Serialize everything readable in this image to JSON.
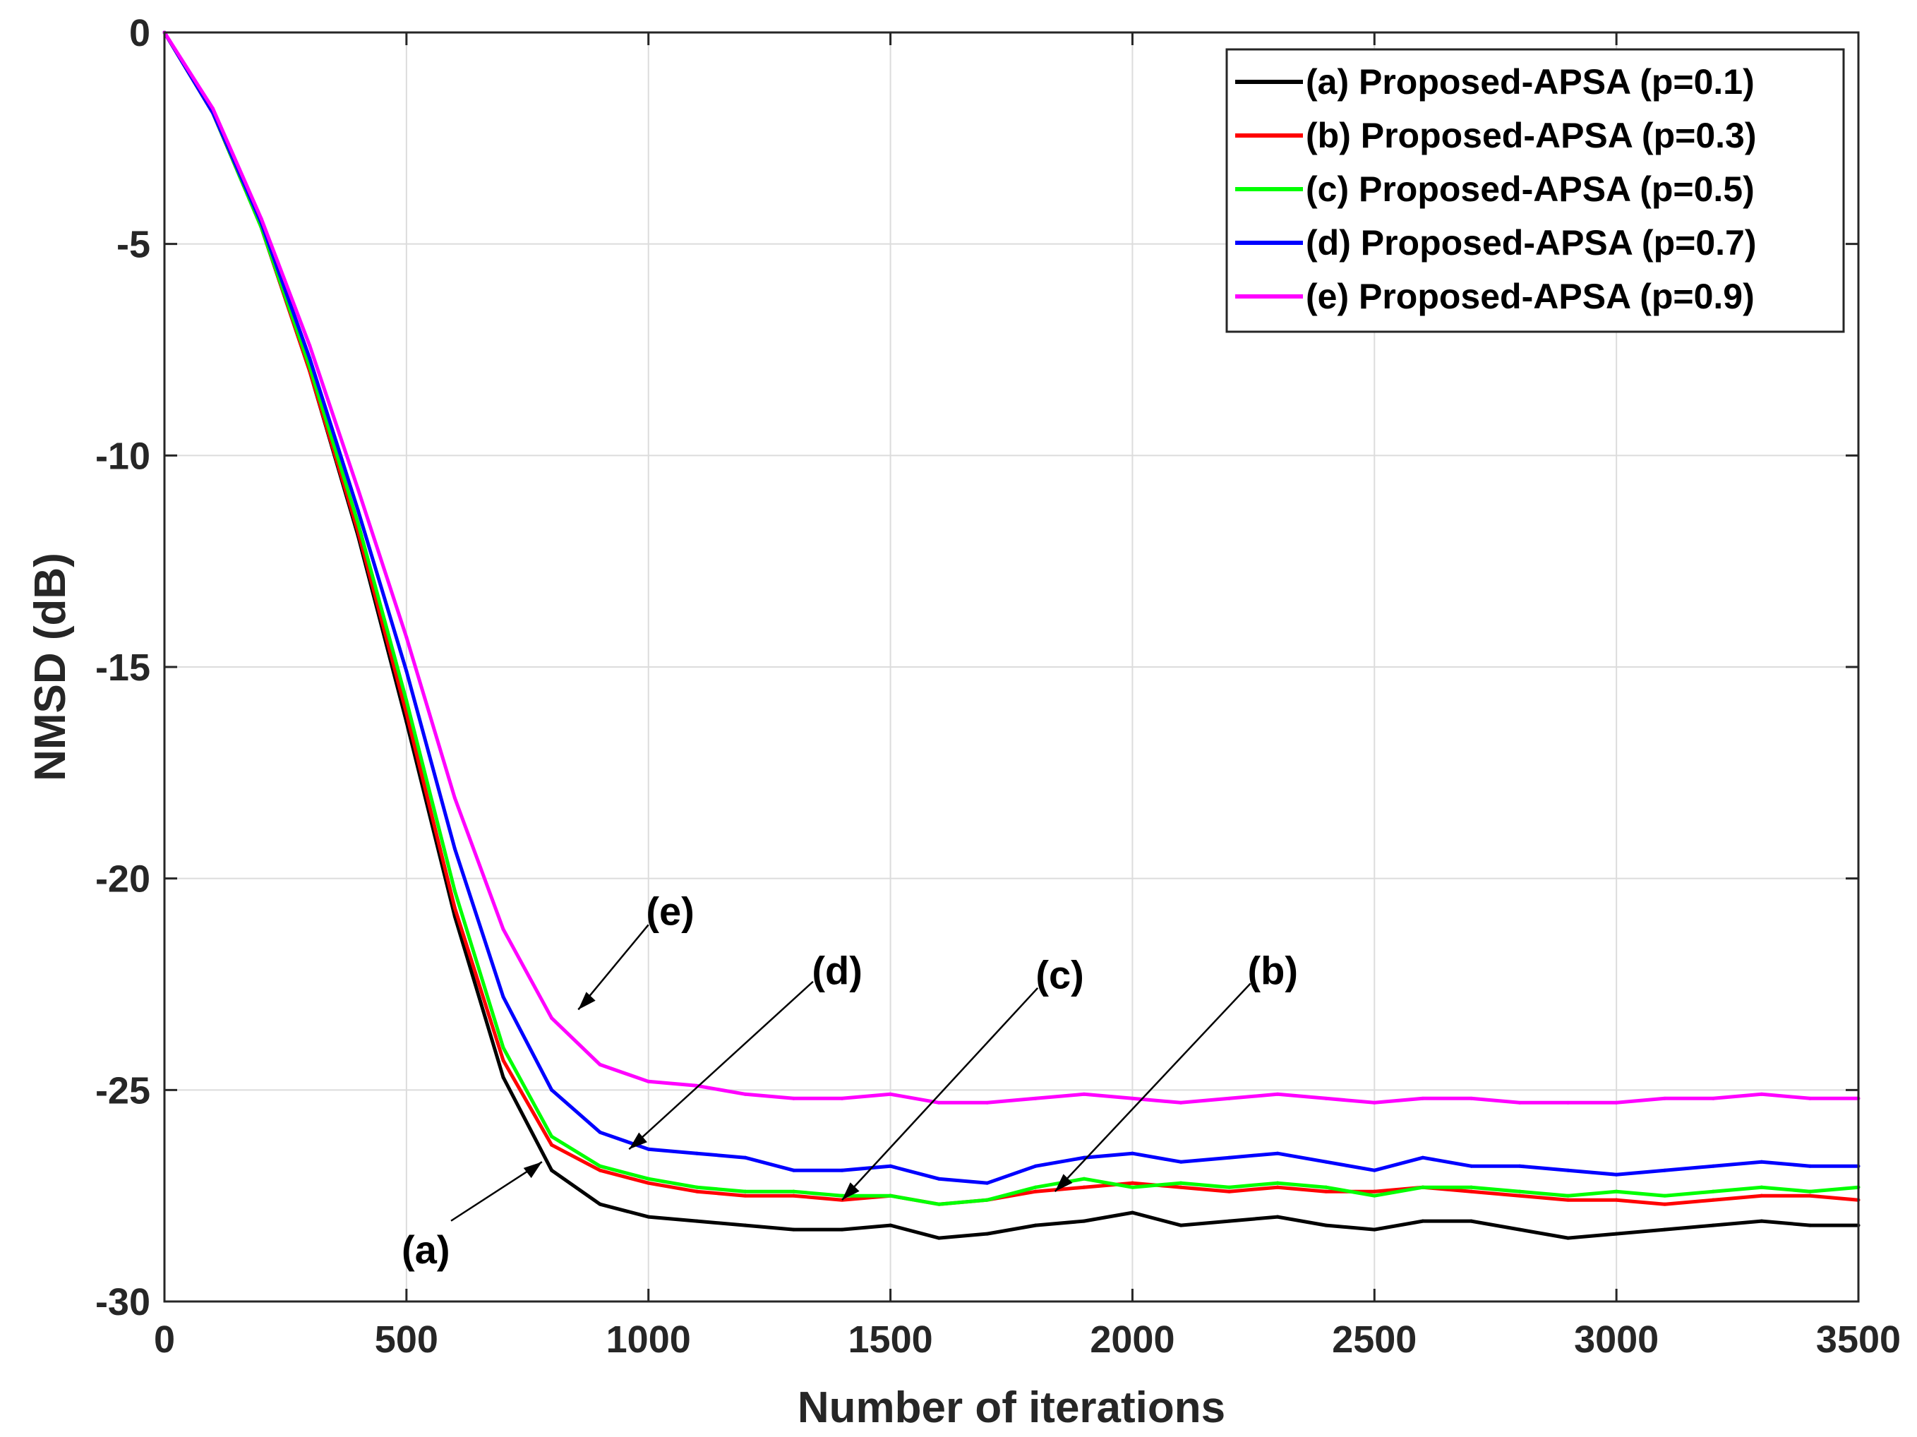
{
  "chart_data": {
    "type": "line",
    "title": "",
    "xlabel": "Number of iterations",
    "ylabel": "NMSD (dB)",
    "xlim": [
      0,
      3500
    ],
    "ylim": [
      -30,
      0
    ],
    "grid": true,
    "legend_position": "top-right",
    "x_ticks": [
      0,
      500,
      1000,
      1500,
      2000,
      2500,
      3000,
      3500
    ],
    "x_tick_labels": [
      "0",
      "500",
      "1000",
      "1500",
      "2000",
      "2500",
      "3000",
      "3500"
    ],
    "y_ticks": [
      0,
      -5,
      -10,
      -15,
      -20,
      -25,
      -30
    ],
    "y_tick_labels": [
      "0",
      "-5",
      "-10",
      "-15",
      "-20",
      "-25",
      "-30"
    ],
    "x": [
      0,
      100,
      200,
      300,
      400,
      500,
      600,
      700,
      800,
      900,
      1000,
      1100,
      1200,
      1300,
      1400,
      1500,
      1600,
      1700,
      1800,
      1900,
      2000,
      2100,
      2200,
      2300,
      2400,
      2500,
      2600,
      2700,
      2800,
      2900,
      3000,
      3100,
      3200,
      3300,
      3400,
      3500
    ],
    "series": [
      {
        "name": "(a) Proposed-APSA (p=0.1)",
        "color": "#000000",
        "values": [
          0,
          -1.9,
          -4.6,
          -8.0,
          -11.9,
          -16.3,
          -20.9,
          -24.7,
          -26.9,
          -27.7,
          -28.0,
          -28.1,
          -28.2,
          -28.3,
          -28.3,
          -28.2,
          -28.5,
          -28.4,
          -28.2,
          -28.1,
          -27.9,
          -28.2,
          -28.1,
          -28.0,
          -28.2,
          -28.3,
          -28.1,
          -28.1,
          -28.3,
          -28.5,
          -28.4,
          -28.3,
          -28.2,
          -28.1,
          -28.2,
          -28.2
        ]
      },
      {
        "name": "(b) Proposed-APSA (p=0.3)",
        "color": "#ff0000",
        "values": [
          0,
          -1.9,
          -4.6,
          -8.0,
          -11.8,
          -16.1,
          -20.7,
          -24.3,
          -26.3,
          -26.9,
          -27.2,
          -27.4,
          -27.5,
          -27.5,
          -27.6,
          -27.5,
          -27.7,
          -27.6,
          -27.4,
          -27.3,
          -27.2,
          -27.3,
          -27.4,
          -27.3,
          -27.4,
          -27.4,
          -27.3,
          -27.4,
          -27.5,
          -27.6,
          -27.6,
          -27.7,
          -27.6,
          -27.5,
          -27.5,
          -27.6
        ]
      },
      {
        "name": "(c) Proposed-APSA (p=0.5)",
        "color": "#00ff00",
        "values": [
          0,
          -1.9,
          -4.6,
          -7.9,
          -11.6,
          -15.8,
          -20.3,
          -24.0,
          -26.1,
          -26.8,
          -27.1,
          -27.3,
          -27.4,
          -27.4,
          -27.5,
          -27.5,
          -27.7,
          -27.6,
          -27.3,
          -27.1,
          -27.3,
          -27.2,
          -27.3,
          -27.2,
          -27.3,
          -27.5,
          -27.3,
          -27.3,
          -27.4,
          -27.5,
          -27.4,
          -27.5,
          -27.4,
          -27.3,
          -27.4,
          -27.3
        ]
      },
      {
        "name": "(d) Proposed-APSA (p=0.7)",
        "color": "#0000ff",
        "values": [
          0,
          -1.9,
          -4.5,
          -7.7,
          -11.3,
          -15.1,
          -19.3,
          -22.8,
          -25.0,
          -26.0,
          -26.4,
          -26.5,
          -26.6,
          -26.9,
          -26.9,
          -26.8,
          -27.1,
          -27.2,
          -26.8,
          -26.6,
          -26.5,
          -26.7,
          -26.6,
          -26.5,
          -26.7,
          -26.9,
          -26.6,
          -26.8,
          -26.8,
          -26.9,
          -27.0,
          -26.9,
          -26.8,
          -26.7,
          -26.8,
          -26.8
        ]
      },
      {
        "name": "(e) Proposed-APSA (p=0.9)",
        "color": "#ff00ff",
        "values": [
          0,
          -1.8,
          -4.4,
          -7.4,
          -10.8,
          -14.3,
          -18.1,
          -21.2,
          -23.3,
          -24.4,
          -24.8,
          -24.9,
          -25.1,
          -25.2,
          -25.2,
          -25.1,
          -25.3,
          -25.3,
          -25.2,
          -25.1,
          -25.2,
          -25.3,
          -25.2,
          -25.1,
          -25.2,
          -25.3,
          -25.2,
          -25.2,
          -25.3,
          -25.3,
          -25.3,
          -25.2,
          -25.2,
          -25.1,
          -25.2,
          -25.2
        ]
      }
    ],
    "annotations": [
      {
        "label": "(a)",
        "text_x": 540,
        "text_y": -28.8,
        "arrow_to_x": 780,
        "arrow_to_y": -26.7
      },
      {
        "label": "(b)",
        "text_x": 2290,
        "text_y": -22.2,
        "arrow_to_x": 1840,
        "arrow_to_y": -27.4
      },
      {
        "label": "(c)",
        "text_x": 1850,
        "text_y": -22.3,
        "arrow_to_x": 1400,
        "arrow_to_y": -27.6
      },
      {
        "label": "(d)",
        "text_x": 1390,
        "text_y": -22.2,
        "arrow_to_x": 960,
        "arrow_to_y": -26.4
      },
      {
        "label": "(e)",
        "text_x": 1045,
        "text_y": -20.8,
        "arrow_to_x": 855,
        "arrow_to_y": -23.1
      }
    ]
  }
}
